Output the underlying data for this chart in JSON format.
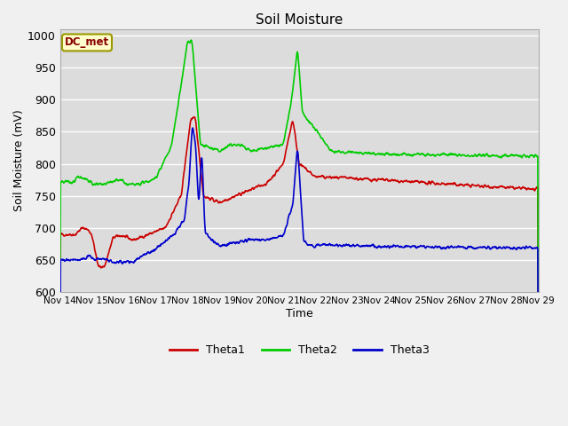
{
  "title": "Soil Moisture",
  "xlabel": "Time",
  "ylabel": "Soil Moisture (mV)",
  "ylim": [
    600,
    1010
  ],
  "yticks": [
    600,
    650,
    700,
    750,
    800,
    850,
    900,
    950,
    1000
  ],
  "fig_bg_color": "#f0f0f0",
  "plot_bg_color": "#dcdcdc",
  "grid_color": "#ffffff",
  "annotation_text": "DC_met",
  "annotation_box_color": "#ffffcc",
  "annotation_border_color": "#999900",
  "theta1_color": "#cc0000",
  "theta2_color": "#00cc00",
  "theta3_color": "#0000cc",
  "xtick_labels": [
    "Nov 14",
    "Nov 15",
    "Nov 16",
    "Nov 17",
    "Nov 18",
    "Nov 19",
    "Nov 20",
    "Nov 21",
    "Nov 22",
    "Nov 23",
    "Nov 24",
    "Nov 25",
    "Nov 26",
    "Nov 27",
    "Nov 28",
    "Nov 29"
  ],
  "num_points": 1500
}
